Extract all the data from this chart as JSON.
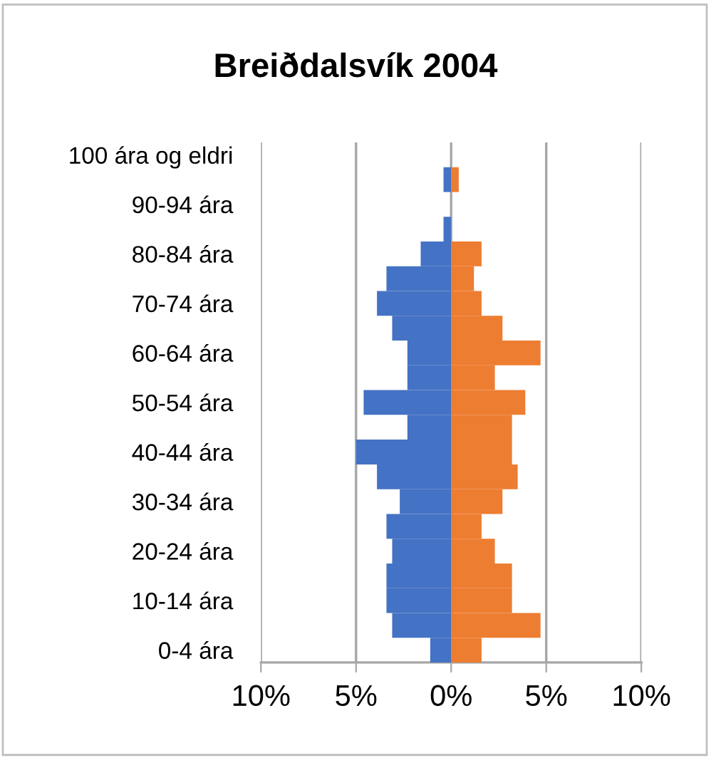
{
  "chart_data": {
    "type": "bar",
    "orientation": "horizontal",
    "title": "Breiðdalsvík 2004",
    "categories": [
      "100 ára og eldri",
      null,
      "90-94 ára",
      null,
      "80-84 ára",
      null,
      "70-74 ára",
      null,
      "60-64 ára",
      null,
      "50-54 ára",
      null,
      "40-44 ára",
      null,
      "30-34 ára",
      null,
      "20-24 ára",
      null,
      "10-14 ára",
      null,
      "0-4 ára"
    ],
    "series": [
      {
        "color": "#4472c4",
        "values": [
          null,
          -0.4,
          null,
          -0.4,
          -1.6,
          -3.4,
          -3.9,
          -3.1,
          -2.3,
          -2.3,
          -4.6,
          -2.3,
          -5.0,
          -3.9,
          -2.7,
          -3.4,
          -3.1,
          -3.4,
          -3.4,
          -3.1,
          -1.1
        ]
      },
      {
        "color": "#ed7d31",
        "values": [
          null,
          0.4,
          null,
          null,
          1.6,
          1.2,
          1.6,
          2.7,
          4.7,
          2.3,
          3.9,
          3.2,
          3.2,
          3.5,
          2.7,
          1.6,
          2.3,
          3.2,
          3.2,
          4.7,
          1.6
        ]
      }
    ],
    "xlim": [
      -10,
      10
    ],
    "xticks": [
      {
        "value": -10,
        "label": "10%"
      },
      {
        "value": -5,
        "label": "5%"
      },
      {
        "value": 0,
        "label": "0%"
      },
      {
        "value": 5,
        "label": "5%"
      },
      {
        "value": 10,
        "label": "10%"
      }
    ],
    "stacked": true,
    "grid": "x",
    "legend": false
  }
}
